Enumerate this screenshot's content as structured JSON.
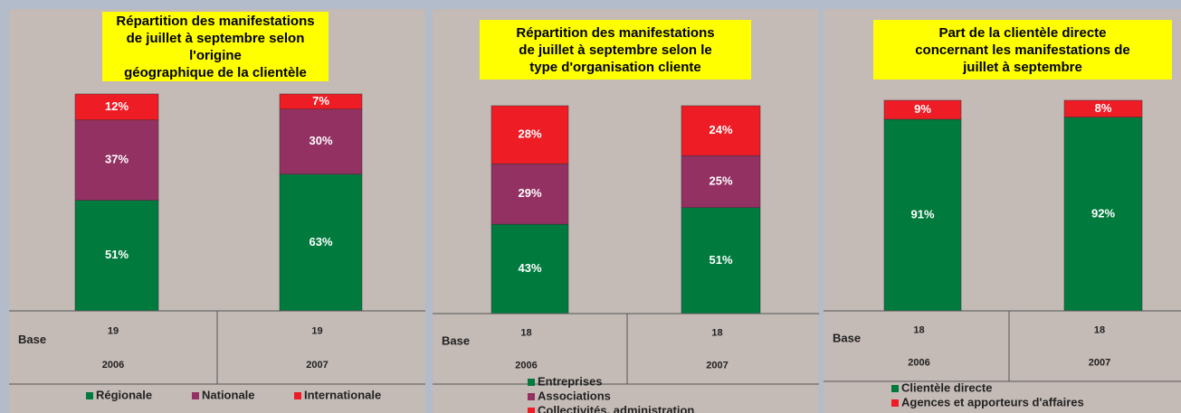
{
  "chart_data": [
    {
      "type": "stacked_bar",
      "title": "Répartition des manifestations\nde juillet à septembre  selon l'origine\ngéographique de la clientèle",
      "categories": [
        "2006",
        "2007"
      ],
      "base_label": "Base",
      "base": [
        19,
        19
      ],
      "ylim": [
        0,
        100
      ],
      "legend": "horizontal",
      "legend_order": "bottom-up",
      "series": [
        {
          "name": "Régionale",
          "color": "#007a3d",
          "values": [
            51,
            63
          ],
          "value_labels": [
            "51%",
            "63%"
          ]
        },
        {
          "name": "Nationale",
          "color": "#933163",
          "values": [
            37,
            30
          ],
          "value_labels": [
            "37%",
            "30%"
          ]
        },
        {
          "name": "Internationale",
          "color": "#ee1c25",
          "values": [
            12,
            7
          ],
          "value_labels": [
            "12%",
            "7%"
          ]
        }
      ]
    },
    {
      "type": "stacked_bar",
      "title": "Répartition des manifestations\nde juillet à septembre  selon le\ntype d'organisation cliente",
      "categories": [
        "2006",
        "2007"
      ],
      "base_label": "Base",
      "base": [
        18,
        18
      ],
      "ylim": [
        0,
        100
      ],
      "legend": "vertical",
      "legend_order": "top-down",
      "series": [
        {
          "name": "Collectivités, administration",
          "color": "#ee1c25",
          "values": [
            28,
            24
          ],
          "value_labels": [
            "28%",
            "24%"
          ]
        },
        {
          "name": "Associations",
          "color": "#933163",
          "values": [
            29,
            25
          ],
          "value_labels": [
            "29%",
            "25%"
          ]
        },
        {
          "name": "Entreprises",
          "color": "#007a3d",
          "values": [
            43,
            51
          ],
          "value_labels": [
            "43%",
            "51%"
          ]
        }
      ]
    },
    {
      "type": "stacked_bar",
      "title": "Part de la clientèle directe\nconcernant les manifestations de\njuillet à septembre",
      "categories": [
        "2006",
        "2007"
      ],
      "base_label": "Base",
      "base": [
        18,
        18
      ],
      "ylim": [
        0,
        100
      ],
      "legend": "vertical",
      "legend_order": "bottom-up",
      "series": [
        {
          "name": "Clientèle directe",
          "color": "#007a3d",
          "values": [
            91,
            92
          ],
          "value_labels": [
            "91%",
            "92%"
          ]
        },
        {
          "name": "Agences et apporteurs d'affaires",
          "color": "#ee1c25",
          "values": [
            9,
            8
          ],
          "value_labels": [
            "9%",
            "8%"
          ]
        }
      ]
    }
  ]
}
